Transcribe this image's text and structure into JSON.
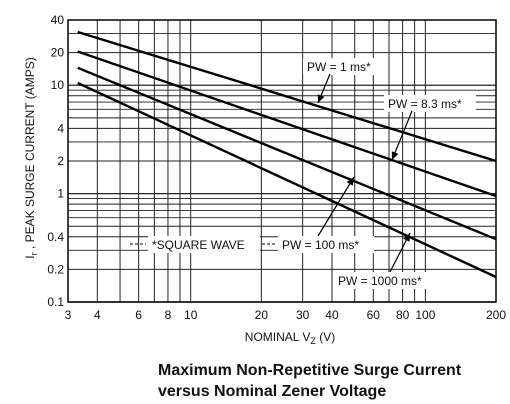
{
  "chart_data": {
    "type": "line",
    "title": "",
    "caption": [
      "Maximum Non-Repetitive Surge Current",
      "versus Nominal Zener Voltage"
    ],
    "ylabel": "I , PEAK SURGE CURRENT (AMPS)",
    "ylabel_sub": "r",
    "xlabel": "NOMINAL V (V)",
    "xlabel_sub": "Z",
    "xscale": "log",
    "yscale": "log",
    "xlim": [
      3,
      200
    ],
    "ylim": [
      0.1,
      40
    ],
    "x_ticks": [
      3,
      4,
      6,
      8,
      10,
      20,
      30,
      40,
      60,
      80,
      100,
      200
    ],
    "x_tick_labels": [
      "3",
      "4",
      "6",
      "8",
      "10",
      "20",
      "30",
      "40",
      "60",
      "80",
      "100",
      "200"
    ],
    "y_ticks": [
      0.1,
      0.2,
      0.4,
      1,
      2,
      4,
      10,
      20,
      40
    ],
    "y_tick_labels": [
      "0.1",
      "0.2",
      "0.4",
      "1",
      "2",
      "4",
      "10",
      "20",
      "40"
    ],
    "grid": true,
    "series": [
      {
        "name": "PW = 1 ms*",
        "x": [
          3.3,
          200
        ],
        "y": [
          31,
          2.0
        ]
      },
      {
        "name": "PW = 8.3 ms*",
        "x": [
          3.3,
          200
        ],
        "y": [
          20.5,
          0.95
        ]
      },
      {
        "name": "PW = 100 ms*",
        "x": [
          3.3,
          200
        ],
        "y": [
          14.5,
          0.38
        ]
      },
      {
        "name": "PW = 1000 ms*",
        "x": [
          3.3,
          200
        ],
        "y": [
          10.5,
          0.17
        ]
      }
    ],
    "annotations": [
      {
        "text": "*SQUARE WAVE"
      }
    ]
  }
}
